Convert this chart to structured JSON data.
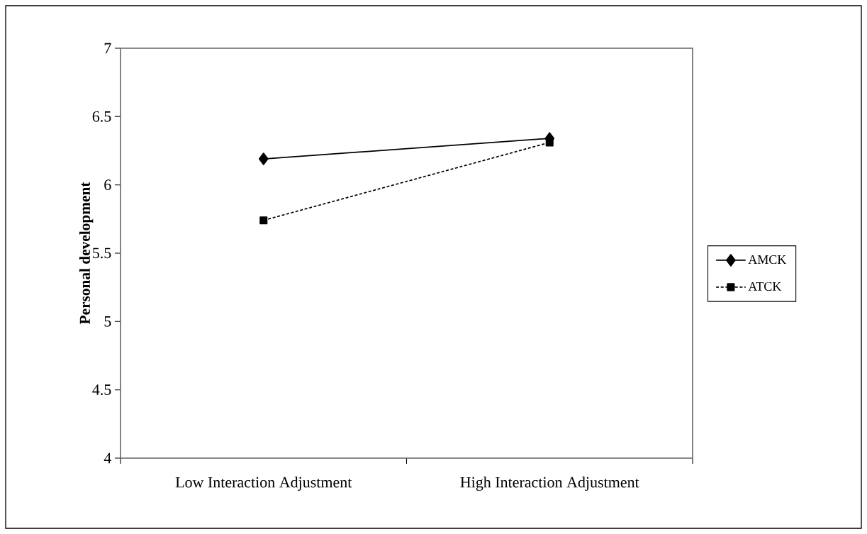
{
  "chart_data": {
    "type": "line",
    "ylabel": "Personal development",
    "categories": [
      "Low Interaction Adjustment",
      "High Interaction Adjustment"
    ],
    "series": [
      {
        "name": "AMCK",
        "color": "#000000",
        "values": [
          6.19,
          6.34
        ],
        "marker": "diamond",
        "line_style": "solid"
      },
      {
        "name": "ATCK",
        "color": "#000000",
        "values": [
          5.74,
          6.31
        ],
        "marker": "square",
        "line_style": "dashed"
      }
    ],
    "ylim": [
      4,
      7
    ],
    "yticks": [
      4,
      4.5,
      5,
      5.5,
      6,
      6.5,
      7
    ],
    "grid": false,
    "legend": "right"
  }
}
